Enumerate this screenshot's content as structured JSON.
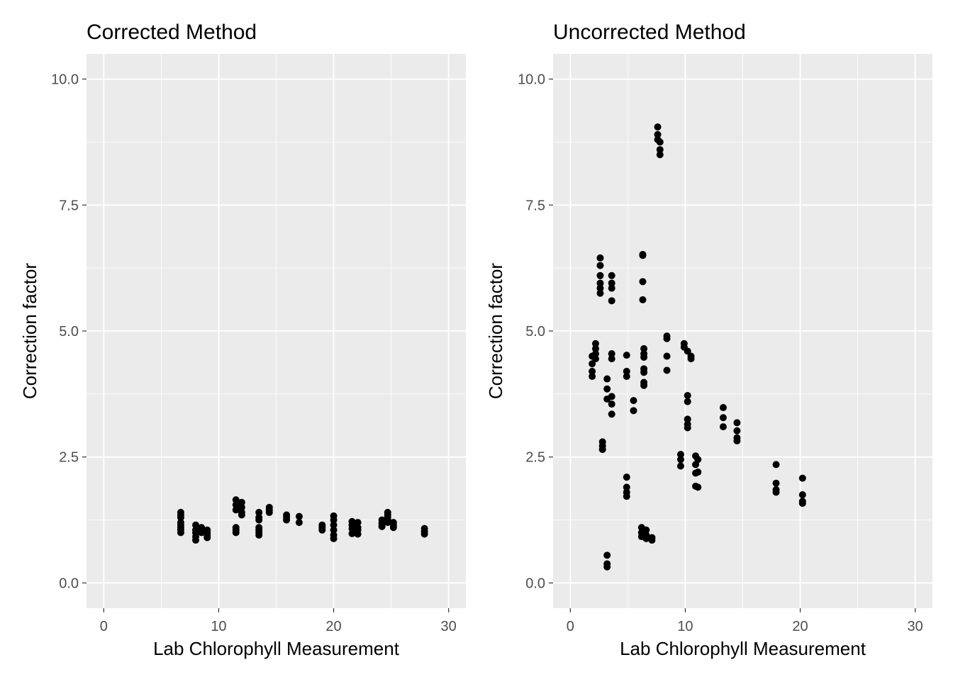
{
  "chart_data": [
    {
      "type": "scatter",
      "title": "Corrected Method",
      "xlabel": "Lab Chlorophyll Measurement",
      "ylabel": "Correction factor",
      "xlim": [
        -1.5,
        31.5
      ],
      "ylim": [
        -0.5,
        10.5
      ],
      "x_ticks": [
        0,
        10,
        20,
        30
      ],
      "x_tick_labels": [
        "0",
        "10",
        "20",
        "30"
      ],
      "y_ticks": [
        0,
        2.5,
        5,
        7.5,
        10
      ],
      "y_tick_labels": [
        "0.0",
        "2.5",
        "5.0",
        "7.5",
        "10.0"
      ],
      "grid": true,
      "point_color": "#000000",
      "panel_color": "#ebebeb",
      "grid_color": "#ffffff",
      "points": [
        [
          6.7,
          1.4
        ],
        [
          6.7,
          1.35
        ],
        [
          6.7,
          1.3
        ],
        [
          6.7,
          1.2
        ],
        [
          6.7,
          1.15
        ],
        [
          6.7,
          1.1
        ],
        [
          6.7,
          1.05
        ],
        [
          6.7,
          1.0
        ],
        [
          8.0,
          1.15
        ],
        [
          8.0,
          1.05
        ],
        [
          8.0,
          1.0
        ],
        [
          8.0,
          0.92
        ],
        [
          8.0,
          0.85
        ],
        [
          8.5,
          1.1
        ],
        [
          8.5,
          1.05
        ],
        [
          8.5,
          1.0
        ],
        [
          9.0,
          1.05
        ],
        [
          9.0,
          1.0
        ],
        [
          9.0,
          0.95
        ],
        [
          9.0,
          0.9
        ],
        [
          11.5,
          1.65
        ],
        [
          11.5,
          1.55
        ],
        [
          11.5,
          1.45
        ],
        [
          11.5,
          1.1
        ],
        [
          11.5,
          1.05
        ],
        [
          11.5,
          1.0
        ],
        [
          12.0,
          1.6
        ],
        [
          12.0,
          1.5
        ],
        [
          12.0,
          1.4
        ],
        [
          12.0,
          1.35
        ],
        [
          13.5,
          1.4
        ],
        [
          13.5,
          1.3
        ],
        [
          13.5,
          1.25
        ],
        [
          13.5,
          1.1
        ],
        [
          13.5,
          1.05
        ],
        [
          13.5,
          1.0
        ],
        [
          13.5,
          0.95
        ],
        [
          14.4,
          1.5
        ],
        [
          14.4,
          1.45
        ],
        [
          14.4,
          1.4
        ],
        [
          15.9,
          1.35
        ],
        [
          15.9,
          1.3
        ],
        [
          15.9,
          1.25
        ],
        [
          17.0,
          1.32
        ],
        [
          17.0,
          1.2
        ],
        [
          19.0,
          1.15
        ],
        [
          19.0,
          1.1
        ],
        [
          19.0,
          1.05
        ],
        [
          20.0,
          1.33
        ],
        [
          20.0,
          1.25
        ],
        [
          20.0,
          1.15
        ],
        [
          20.0,
          1.05
        ],
        [
          20.0,
          0.95
        ],
        [
          20.0,
          0.88
        ],
        [
          21.6,
          1.22
        ],
        [
          21.6,
          1.15
        ],
        [
          21.6,
          1.08
        ],
        [
          21.6,
          0.98
        ],
        [
          22.1,
          1.2
        ],
        [
          22.1,
          1.1
        ],
        [
          22.1,
          1.05
        ],
        [
          22.1,
          0.97
        ],
        [
          24.2,
          1.25
        ],
        [
          24.2,
          1.18
        ],
        [
          24.2,
          1.12
        ],
        [
          24.7,
          1.4
        ],
        [
          24.7,
          1.35
        ],
        [
          24.7,
          1.3
        ],
        [
          24.7,
          1.25
        ],
        [
          24.7,
          1.2
        ],
        [
          25.2,
          1.2
        ],
        [
          25.2,
          1.15
        ],
        [
          25.2,
          1.1
        ],
        [
          27.9,
          1.08
        ],
        [
          27.9,
          1.02
        ],
        [
          27.9,
          0.97
        ]
      ]
    },
    {
      "type": "scatter",
      "title": "Uncorrected Method",
      "xlabel": "Lab Chlorophyll Measurement",
      "ylabel": "Correction factor",
      "xlim": [
        -1.5,
        31.5
      ],
      "ylim": [
        -0.5,
        10.5
      ],
      "x_ticks": [
        0,
        10,
        20,
        30
      ],
      "x_tick_labels": [
        "0",
        "10",
        "20",
        "30"
      ],
      "y_ticks": [
        0,
        2.5,
        5,
        7.5,
        10
      ],
      "y_tick_labels": [
        "0.0",
        "2.5",
        "5.0",
        "7.5",
        "10.0"
      ],
      "grid": true,
      "point_color": "#000000",
      "panel_color": "#ebebeb",
      "grid_color": "#ffffff",
      "points": [
        [
          1.9,
          4.5
        ],
        [
          1.9,
          4.35
        ],
        [
          1.9,
          4.2
        ],
        [
          1.9,
          4.1
        ],
        [
          2.2,
          4.75
        ],
        [
          2.2,
          4.65
        ],
        [
          2.2,
          4.55
        ],
        [
          2.2,
          4.45
        ],
        [
          2.6,
          6.45
        ],
        [
          2.6,
          6.3
        ],
        [
          2.6,
          6.1
        ],
        [
          2.6,
          5.95
        ],
        [
          2.6,
          5.85
        ],
        [
          2.6,
          5.75
        ],
        [
          2.8,
          2.8
        ],
        [
          2.8,
          2.72
        ],
        [
          2.8,
          2.65
        ],
        [
          3.2,
          4.05
        ],
        [
          3.2,
          3.85
        ],
        [
          3.2,
          3.65
        ],
        [
          3.2,
          0.55
        ],
        [
          3.2,
          0.38
        ],
        [
          3.2,
          0.32
        ],
        [
          3.6,
          6.1
        ],
        [
          3.6,
          5.95
        ],
        [
          3.6,
          5.85
        ],
        [
          3.6,
          5.6
        ],
        [
          3.6,
          4.55
        ],
        [
          3.6,
          4.45
        ],
        [
          3.6,
          3.7
        ],
        [
          3.6,
          3.55
        ],
        [
          3.6,
          3.35
        ],
        [
          4.9,
          4.52
        ],
        [
          4.9,
          4.2
        ],
        [
          4.9,
          4.1
        ],
        [
          4.9,
          2.1
        ],
        [
          4.9,
          1.9
        ],
        [
          4.9,
          1.8
        ],
        [
          4.9,
          1.72
        ],
        [
          5.5,
          3.62
        ],
        [
          5.5,
          3.42
        ],
        [
          6.2,
          1.1
        ],
        [
          6.2,
          1.0
        ],
        [
          6.2,
          0.92
        ],
        [
          6.3,
          6.52
        ],
        [
          6.3,
          6.5
        ],
        [
          6.3,
          5.98
        ],
        [
          6.3,
          5.62
        ],
        [
          6.4,
          4.65
        ],
        [
          6.4,
          4.55
        ],
        [
          6.4,
          4.48
        ],
        [
          6.4,
          4.25
        ],
        [
          6.4,
          4.18
        ],
        [
          6.4,
          3.98
        ],
        [
          6.4,
          3.92
        ],
        [
          6.6,
          1.05
        ],
        [
          6.6,
          0.95
        ],
        [
          6.6,
          0.88
        ],
        [
          7.1,
          0.9
        ],
        [
          7.1,
          0.85
        ],
        [
          7.6,
          9.05
        ],
        [
          7.6,
          8.9
        ],
        [
          7.6,
          8.8
        ],
        [
          7.8,
          8.75
        ],
        [
          7.8,
          8.6
        ],
        [
          7.8,
          8.5
        ],
        [
          8.4,
          4.9
        ],
        [
          8.4,
          4.85
        ],
        [
          8.4,
          4.5
        ],
        [
          8.4,
          4.22
        ],
        [
          9.6,
          2.55
        ],
        [
          9.6,
          2.45
        ],
        [
          9.6,
          2.32
        ],
        [
          9.9,
          4.75
        ],
        [
          9.9,
          4.68
        ],
        [
          10.2,
          4.6
        ],
        [
          10.2,
          3.72
        ],
        [
          10.2,
          3.6
        ],
        [
          10.2,
          3.25
        ],
        [
          10.2,
          3.15
        ],
        [
          10.2,
          3.08
        ],
        [
          10.5,
          4.5
        ],
        [
          10.5,
          4.45
        ],
        [
          10.9,
          2.52
        ],
        [
          10.9,
          2.35
        ],
        [
          10.9,
          2.18
        ],
        [
          10.9,
          1.92
        ],
        [
          11.1,
          2.45
        ],
        [
          11.1,
          2.2
        ],
        [
          11.1,
          1.9
        ],
        [
          13.3,
          3.48
        ],
        [
          13.3,
          3.28
        ],
        [
          13.3,
          3.1
        ],
        [
          14.5,
          3.18
        ],
        [
          14.5,
          3.02
        ],
        [
          14.5,
          2.88
        ],
        [
          14.5,
          2.82
        ],
        [
          17.9,
          2.35
        ],
        [
          17.9,
          1.98
        ],
        [
          17.9,
          1.85
        ],
        [
          17.9,
          1.8
        ],
        [
          20.2,
          2.08
        ],
        [
          20.2,
          1.75
        ],
        [
          20.2,
          1.62
        ],
        [
          20.2,
          1.58
        ]
      ]
    }
  ]
}
